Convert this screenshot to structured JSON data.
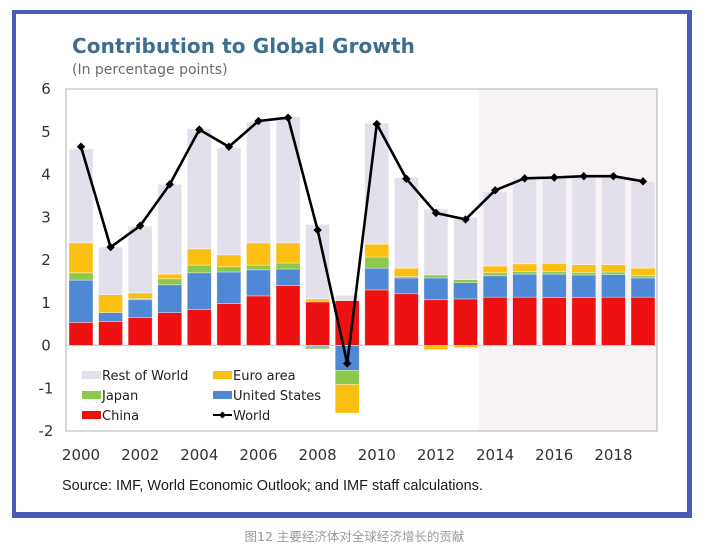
{
  "chart_data": {
    "type": "bar",
    "stacked": true,
    "title": "Contribution to Global Growth",
    "subtitle": "(In percentage points)",
    "xlabel": "",
    "ylabel": "",
    "ylim": [
      -2,
      6
    ],
    "yticks": [
      6,
      5,
      4,
      3,
      2,
      1,
      0,
      -1,
      -2
    ],
    "x": [
      2000,
      2001,
      2002,
      2003,
      2004,
      2005,
      2006,
      2007,
      2008,
      2009,
      2010,
      2011,
      2012,
      2013,
      2014,
      2015,
      2016,
      2017,
      2018,
      2019
    ],
    "xticks": [
      "2000",
      "2002",
      "2004",
      "2006",
      "2008",
      "2010",
      "2012",
      "2014",
      "2016",
      "2018"
    ],
    "projection_shading_from": 2014,
    "series": [
      {
        "name": "China",
        "kind": "bar",
        "color": "#ee1111",
        "values": [
          0.54,
          0.56,
          0.65,
          0.77,
          0.84,
          0.98,
          1.16,
          1.4,
          1.02,
          1.05,
          1.3,
          1.21,
          1.07,
          1.09,
          1.13,
          1.13,
          1.12,
          1.12,
          1.13,
          1.13
        ]
      },
      {
        "name": "United States",
        "kind": "bar",
        "color": "#4f88d4",
        "values": [
          0.99,
          0.21,
          0.42,
          0.65,
          0.86,
          0.74,
          0.61,
          0.39,
          -0.03,
          -0.58,
          0.51,
          0.37,
          0.51,
          0.38,
          0.5,
          0.54,
          0.55,
          0.53,
          0.53,
          0.45
        ]
      },
      {
        "name": "Japan",
        "kind": "bar",
        "color": "#8cc84b",
        "values": [
          0.17,
          0.0,
          0.03,
          0.14,
          0.18,
          0.12,
          0.11,
          0.14,
          -0.05,
          -0.33,
          0.26,
          0.03,
          0.07,
          0.07,
          0.07,
          0.06,
          0.06,
          0.06,
          0.06,
          0.05
        ]
      },
      {
        "name": "Euro area",
        "kind": "bar",
        "color": "#fbbf12",
        "values": [
          0.7,
          0.42,
          0.13,
          0.11,
          0.38,
          0.28,
          0.52,
          0.47,
          0.07,
          -0.67,
          0.3,
          0.2,
          -0.1,
          -0.05,
          0.16,
          0.18,
          0.19,
          0.18,
          0.17,
          0.18
        ]
      },
      {
        "name": "Rest of World",
        "kind": "bar",
        "color": "#e3e0ec",
        "values": [
          2.2,
          1.11,
          1.56,
          2.1,
          2.81,
          2.51,
          2.83,
          2.95,
          1.74,
          0.12,
          2.83,
          2.12,
          1.54,
          1.46,
          1.74,
          2.01,
          2.03,
          2.08,
          2.08,
          2.03
        ]
      },
      {
        "name": "World",
        "kind": "line",
        "color": "#000000",
        "values": [
          4.65,
          2.3,
          2.8,
          3.77,
          5.05,
          4.65,
          5.25,
          5.33,
          2.7,
          -0.42,
          5.18,
          3.9,
          3.1,
          2.95,
          3.63,
          3.91,
          3.93,
          3.96,
          3.96,
          3.84
        ]
      }
    ],
    "legend": {
      "placement": "bottom-left",
      "entries": [
        "Rest of World",
        "Euro area",
        "Japan",
        "United States",
        "China",
        "World"
      ]
    },
    "grid": false,
    "source": "Source: IMF, World Economic Outlook; and IMF staff calculations."
  },
  "caption": "图12 主要经济体对全球经济增长的贡献",
  "colors": {
    "frame": "#4a5ab8",
    "title": "#3e6e8e",
    "shading": "#f6f2f6"
  }
}
